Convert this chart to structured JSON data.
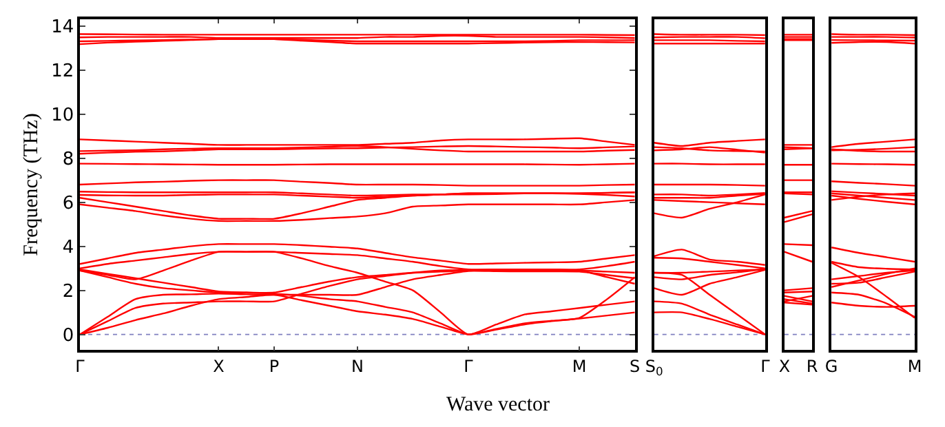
{
  "chart_data": [
    {
      "type": "line",
      "ylabel": "Frequency (THz)",
      "xlabel": "Wave vector",
      "categories": [
        "Γ",
        null,
        null,
        null,
        null,
        "X",
        null,
        "P",
        null,
        null,
        "N",
        null,
        null,
        null,
        "Γ",
        null,
        null,
        null,
        "M",
        null,
        "S"
      ],
      "ylim": [
        -0.7,
        14.3
      ],
      "yticks": [
        0,
        2,
        4,
        6,
        8,
        10,
        12,
        14
      ],
      "ref_lines": [
        {
          "axis": "y",
          "value": 0,
          "color": "#8080c0",
          "line_style": "dotted"
        }
      ],
      "series": [
        {
          "color": "#ff0000",
          "values": [
            13.63,
            13.62,
            13.61,
            13.6,
            13.6,
            13.6,
            13.6,
            13.6,
            13.6,
            13.6,
            13.6,
            13.6,
            13.6,
            13.6,
            13.6,
            13.6,
            13.6,
            13.6,
            13.6,
            13.59,
            13.58
          ]
        },
        {
          "color": "#ff0000",
          "values": [
            13.48,
            13.5,
            13.5,
            13.5,
            13.5,
            13.45,
            13.45,
            13.45,
            13.45,
            13.45,
            13.45,
            13.5,
            13.5,
            13.55,
            13.55,
            13.5,
            13.5,
            13.5,
            13.5,
            13.48,
            13.45
          ]
        },
        {
          "color": "#ff0000",
          "values": [
            13.3,
            13.32,
            13.34,
            13.36,
            13.38,
            13.4,
            13.4,
            13.4,
            13.37,
            13.33,
            13.3,
            13.3,
            13.3,
            13.3,
            13.3,
            13.3,
            13.3,
            13.32,
            13.35,
            13.35,
            13.35
          ]
        },
        {
          "color": "#ff0000",
          "values": [
            13.17,
            13.24,
            13.28,
            13.32,
            13.36,
            13.4,
            13.4,
            13.4,
            13.33,
            13.27,
            13.2,
            13.2,
            13.2,
            13.2,
            13.2,
            13.22,
            13.24,
            13.26,
            13.27,
            13.26,
            13.25
          ]
        },
        {
          "color": "#ff0000",
          "values": [
            8.85,
            8.8,
            8.75,
            8.7,
            8.65,
            8.6,
            8.6,
            8.6,
            8.6,
            8.6,
            8.6,
            8.65,
            8.7,
            8.8,
            8.85,
            8.85,
            8.85,
            8.88,
            8.9,
            8.75,
            8.6
          ]
        },
        {
          "color": "#ff0000",
          "values": [
            8.32,
            8.34,
            8.36,
            8.4,
            8.43,
            8.45,
            8.45,
            8.45,
            8.48,
            8.52,
            8.55,
            8.5,
            8.42,
            8.35,
            8.3,
            8.3,
            8.3,
            8.3,
            8.3,
            8.34,
            8.37
          ]
        },
        {
          "color": "#ff0000",
          "values": [
            8.2,
            8.25,
            8.29,
            8.31,
            8.35,
            8.4,
            8.4,
            8.4,
            8.42,
            8.44,
            8.45,
            8.48,
            8.5,
            8.53,
            8.55,
            8.53,
            8.5,
            8.48,
            8.45,
            8.49,
            8.53
          ]
        },
        {
          "color": "#ff0000",
          "values": [
            7.75,
            7.74,
            7.73,
            7.72,
            7.71,
            7.7,
            7.7,
            7.7,
            7.71,
            7.72,
            7.72,
            7.72,
            7.72,
            7.72,
            7.72,
            7.72,
            7.72,
            7.71,
            7.7,
            7.72,
            7.75
          ]
        },
        {
          "color": "#ff0000",
          "values": [
            6.8,
            6.85,
            6.9,
            6.93,
            6.97,
            7.0,
            7.0,
            7.0,
            6.93,
            6.87,
            6.8,
            6.8,
            6.8,
            6.78,
            6.75,
            6.75,
            6.75,
            6.75,
            6.75,
            6.78,
            6.8
          ]
        },
        {
          "color": "#ff0000",
          "values": [
            6.48,
            6.46,
            6.45,
            6.45,
            6.45,
            6.45,
            6.45,
            6.45,
            6.4,
            6.35,
            6.3,
            6.32,
            6.35,
            6.35,
            6.35,
            6.37,
            6.4,
            6.4,
            6.4,
            6.42,
            6.45
          ]
        },
        {
          "color": "#ff0000",
          "values": [
            6.33,
            6.31,
            6.3,
            6.3,
            6.33,
            6.35,
            6.35,
            6.35,
            6.3,
            6.25,
            6.2,
            6.25,
            6.3,
            6.35,
            6.4,
            6.4,
            6.4,
            6.4,
            6.38,
            6.33,
            6.26
          ]
        },
        {
          "color": "#ff0000",
          "values": [
            6.2,
            6.0,
            5.8,
            5.6,
            5.4,
            5.25,
            5.25,
            5.25,
            5.5,
            5.8,
            6.1,
            6.2,
            6.3,
            6.35,
            6.4,
            6.4,
            6.4,
            6.4,
            6.4,
            6.43,
            6.45
          ]
        },
        {
          "color": "#ff0000",
          "values": [
            5.9,
            5.75,
            5.6,
            5.4,
            5.25,
            5.15,
            5.15,
            5.15,
            5.2,
            5.28,
            5.35,
            5.5,
            5.8,
            5.85,
            5.9,
            5.9,
            5.9,
            5.9,
            5.9,
            6.0,
            6.1
          ]
        },
        {
          "color": "#ff0000",
          "values": [
            3.2,
            3.45,
            3.7,
            3.85,
            4.0,
            4.1,
            4.1,
            4.1,
            4.05,
            3.98,
            3.9,
            3.7,
            3.5,
            3.35,
            3.2,
            3.22,
            3.25,
            3.27,
            3.3,
            3.45,
            3.6
          ]
        },
        {
          "color": "#ff0000",
          "values": [
            3.0,
            3.2,
            3.35,
            3.5,
            3.65,
            3.75,
            3.75,
            3.75,
            3.7,
            3.65,
            3.6,
            3.45,
            3.3,
            3.1,
            2.95,
            2.95,
            2.95,
            2.95,
            2.95,
            3.1,
            3.3
          ]
        },
        {
          "color": "#ff0000",
          "values": [
            2.95,
            2.75,
            2.55,
            2.35,
            2.15,
            1.95,
            1.9,
            1.85,
            1.75,
            1.6,
            1.5,
            1.25,
            1.0,
            0.5,
            0,
            0.25,
            0.5,
            0.62,
            0.75,
            1.6,
            2.6
          ]
        },
        {
          "color": "#ff0000",
          "values": [
            2.9,
            2.6,
            2.3,
            2.1,
            2.0,
            1.9,
            1.9,
            1.9,
            2.15,
            2.4,
            2.6,
            2.7,
            2.8,
            2.85,
            2.9,
            2.9,
            2.9,
            2.9,
            2.9,
            2.85,
            2.8
          ]
        },
        {
          "color": "#ff0000",
          "values": [
            0,
            0.8,
            1.6,
            1.8,
            1.82,
            1.85,
            1.82,
            1.8,
            1.8,
            1.8,
            1.8,
            2.15,
            2.5,
            2.7,
            2.88,
            2.87,
            2.86,
            2.86,
            2.85,
            2.7,
            2.55
          ]
        },
        {
          "color": "#ff0000",
          "values": [
            0,
            0.6,
            1.2,
            1.4,
            1.45,
            1.5,
            1.5,
            1.5,
            1.85,
            2.2,
            2.5,
            2.65,
            2.8,
            2.9,
            2.93,
            2.92,
            2.91,
            2.9,
            2.9,
            2.6,
            2.3
          ]
        },
        {
          "color": "#ff0000",
          "values": [
            0,
            0.3,
            0.65,
            0.95,
            1.3,
            1.6,
            1.7,
            1.8,
            1.55,
            1.3,
            1.05,
            0.9,
            0.7,
            0.35,
            0,
            0.22,
            0.45,
            0.6,
            0.72,
            0.86,
            1.0
          ]
        },
        {
          "color": "#ff0000",
          "values": [
            2.9,
            2.7,
            2.5,
            2.9,
            3.35,
            3.75,
            3.75,
            3.75,
            3.45,
            3.1,
            2.8,
            2.4,
            2.0,
            1.0,
            0,
            0.45,
            0.9,
            1.05,
            1.2,
            1.35,
            1.5
          ]
        }
      ]
    },
    {
      "type": "line",
      "categories": [
        "S$_{0}$",
        null,
        null,
        null,
        "Γ"
      ],
      "ylim": [
        -0.7,
        14.3
      ],
      "tick_labels": "x",
      "ref_lines": [
        {
          "axis": "y",
          "value": 0,
          "color": "#8080c0",
          "line_style": "dotted"
        }
      ],
      "series": [
        {
          "color": "#ff0000",
          "values": [
            13.63,
            13.6,
            13.6,
            13.6,
            13.58
          ]
        },
        {
          "color": "#ff0000",
          "values": [
            13.48,
            13.5,
            13.5,
            13.5,
            13.44
          ]
        },
        {
          "color": "#ff0000",
          "values": [
            13.35,
            13.35,
            13.35,
            13.32,
            13.3
          ]
        },
        {
          "color": "#ff0000",
          "values": [
            13.2,
            13.2,
            13.2,
            13.2,
            13.2
          ]
        },
        {
          "color": "#ff0000",
          "values": [
            8.7,
            8.55,
            8.7,
            8.78,
            8.85
          ]
        },
        {
          "color": "#ff0000",
          "values": [
            8.5,
            8.45,
            8.35,
            8.32,
            8.3
          ]
        },
        {
          "color": "#ff0000",
          "values": [
            8.35,
            8.4,
            8.5,
            8.38,
            8.25
          ]
        },
        {
          "color": "#ff0000",
          "values": [
            7.75,
            7.75,
            7.72,
            7.72,
            7.72
          ]
        },
        {
          "color": "#ff0000",
          "values": [
            6.8,
            6.8,
            6.8,
            6.78,
            6.75
          ]
        },
        {
          "color": "#ff0000",
          "values": [
            6.35,
            6.35,
            6.3,
            6.35,
            6.42
          ]
        },
        {
          "color": "#ff0000",
          "values": [
            6.2,
            6.2,
            6.2,
            6.3,
            6.38
          ]
        },
        {
          "color": "#ff0000",
          "values": [
            6.1,
            6.05,
            6.0,
            5.95,
            5.9
          ]
        },
        {
          "color": "#ff0000",
          "values": [
            5.5,
            5.3,
            5.7,
            6.0,
            6.35
          ]
        },
        {
          "color": "#ff0000",
          "values": [
            3.55,
            3.85,
            3.4,
            3.3,
            3.15
          ]
        },
        {
          "color": "#ff0000",
          "values": [
            3.48,
            3.45,
            3.3,
            3.15,
            3.0
          ]
        },
        {
          "color": "#ff0000",
          "values": [
            2.8,
            2.8,
            2.85,
            2.9,
            2.95
          ]
        },
        {
          "color": "#ff0000",
          "values": [
            2.6,
            2.5,
            2.7,
            2.82,
            2.97
          ]
        },
        {
          "color": "#ff0000",
          "values": [
            2.1,
            1.8,
            2.3,
            2.6,
            2.93
          ]
        },
        {
          "color": "#ff0000",
          "values": [
            2.8,
            2.7,
            1.8,
            0.9,
            0
          ]
        },
        {
          "color": "#ff0000",
          "values": [
            1.5,
            1.4,
            0.9,
            0.45,
            0
          ]
        },
        {
          "color": "#ff0000",
          "values": [
            1.0,
            1.0,
            0.7,
            0.35,
            0
          ]
        }
      ]
    },
    {
      "type": "line",
      "categories": [
        "X",
        "R"
      ],
      "ylim": [
        -0.7,
        14.3
      ],
      "tick_labels": "x",
      "ref_lines": [
        {
          "axis": "y",
          "value": 0,
          "color": "#8080c0",
          "line_style": "dotted"
        }
      ],
      "series": [
        {
          "color": "#ff0000",
          "values": [
            13.6,
            13.6
          ]
        },
        {
          "color": "#ff0000",
          "values": [
            13.5,
            13.5
          ]
        },
        {
          "color": "#ff0000",
          "values": [
            13.4,
            13.4
          ]
        },
        {
          "color": "#ff0000",
          "values": [
            13.35,
            13.35
          ]
        },
        {
          "color": "#ff0000",
          "values": [
            8.6,
            8.6
          ]
        },
        {
          "color": "#ff0000",
          "values": [
            8.5,
            8.45
          ]
        },
        {
          "color": "#ff0000",
          "values": [
            8.4,
            8.45
          ]
        },
        {
          "color": "#ff0000",
          "values": [
            7.7,
            7.7
          ]
        },
        {
          "color": "#ff0000",
          "values": [
            7.0,
            7.0
          ]
        },
        {
          "color": "#ff0000",
          "values": [
            6.45,
            6.45
          ]
        },
        {
          "color": "#ff0000",
          "values": [
            6.4,
            6.35
          ]
        },
        {
          "color": "#ff0000",
          "values": [
            5.3,
            5.6
          ]
        },
        {
          "color": "#ff0000",
          "values": [
            5.1,
            5.45
          ]
        },
        {
          "color": "#ff0000",
          "values": [
            4.1,
            4.05
          ]
        },
        {
          "color": "#ff0000",
          "values": [
            3.75,
            3.3
          ]
        },
        {
          "color": "#ff0000",
          "values": [
            2.0,
            2.1
          ]
        },
        {
          "color": "#ff0000",
          "values": [
            1.9,
            1.95
          ]
        },
        {
          "color": "#ff0000",
          "values": [
            1.6,
            1.4
          ]
        },
        {
          "color": "#ff0000",
          "values": [
            1.5,
            1.75
          ]
        },
        {
          "color": "#ff0000",
          "values": [
            1.75,
            1.5
          ]
        },
        {
          "color": "#ff0000",
          "values": [
            1.45,
            1.35
          ]
        }
      ]
    },
    {
      "type": "line",
      "categories": [
        "G",
        null,
        null,
        "M"
      ],
      "ylim": [
        -0.7,
        14.3
      ],
      "tick_labels": "x",
      "ref_lines": [
        {
          "axis": "y",
          "value": 0,
          "color": "#8080c0",
          "line_style": "dotted"
        }
      ],
      "series": [
        {
          "color": "#ff0000",
          "values": [
            13.63,
            13.6,
            13.6,
            13.58
          ]
        },
        {
          "color": "#ff0000",
          "values": [
            13.5,
            13.5,
            13.5,
            13.47
          ]
        },
        {
          "color": "#ff0000",
          "values": [
            13.36,
            13.35,
            13.34,
            13.33
          ]
        },
        {
          "color": "#ff0000",
          "values": [
            13.23,
            13.27,
            13.27,
            13.2
          ]
        },
        {
          "color": "#ff0000",
          "values": [
            8.5,
            8.65,
            8.75,
            8.85
          ]
        },
        {
          "color": "#ff0000",
          "values": [
            8.4,
            8.33,
            8.3,
            8.3
          ]
        },
        {
          "color": "#ff0000",
          "values": [
            8.35,
            8.38,
            8.43,
            8.5
          ]
        },
        {
          "color": "#ff0000",
          "values": [
            7.75,
            7.73,
            7.72,
            7.7
          ]
        },
        {
          "color": "#ff0000",
          "values": [
            6.95,
            6.88,
            6.82,
            6.75
          ]
        },
        {
          "color": "#ff0000",
          "values": [
            6.5,
            6.43,
            6.37,
            6.3
          ]
        },
        {
          "color": "#ff0000",
          "values": [
            6.4,
            6.3,
            6.2,
            6.1
          ]
        },
        {
          "color": "#ff0000",
          "values": [
            6.3,
            6.15,
            6.02,
            5.9
          ]
        },
        {
          "color": "#ff0000",
          "values": [
            6.1,
            6.25,
            6.35,
            6.4
          ]
        },
        {
          "color": "#ff0000",
          "values": [
            3.95,
            3.7,
            3.5,
            3.3
          ]
        },
        {
          "color": "#ff0000",
          "values": [
            3.3,
            3.05,
            2.98,
            2.95
          ]
        },
        {
          "color": "#ff0000",
          "values": [
            3.25,
            2.6,
            1.7,
            0.75
          ]
        },
        {
          "color": "#ff0000",
          "values": [
            2.15,
            2.45,
            2.75,
            3.0
          ]
        },
        {
          "color": "#ff0000",
          "values": [
            2.5,
            2.65,
            2.8,
            2.9
          ]
        },
        {
          "color": "#ff0000",
          "values": [
            1.9,
            1.8,
            1.4,
            0.8
          ]
        },
        {
          "color": "#ff0000",
          "values": [
            1.45,
            1.3,
            1.25,
            1.3
          ]
        },
        {
          "color": "#ff0000",
          "values": [
            2.3,
            2.35,
            2.6,
            2.85
          ]
        }
      ]
    }
  ]
}
